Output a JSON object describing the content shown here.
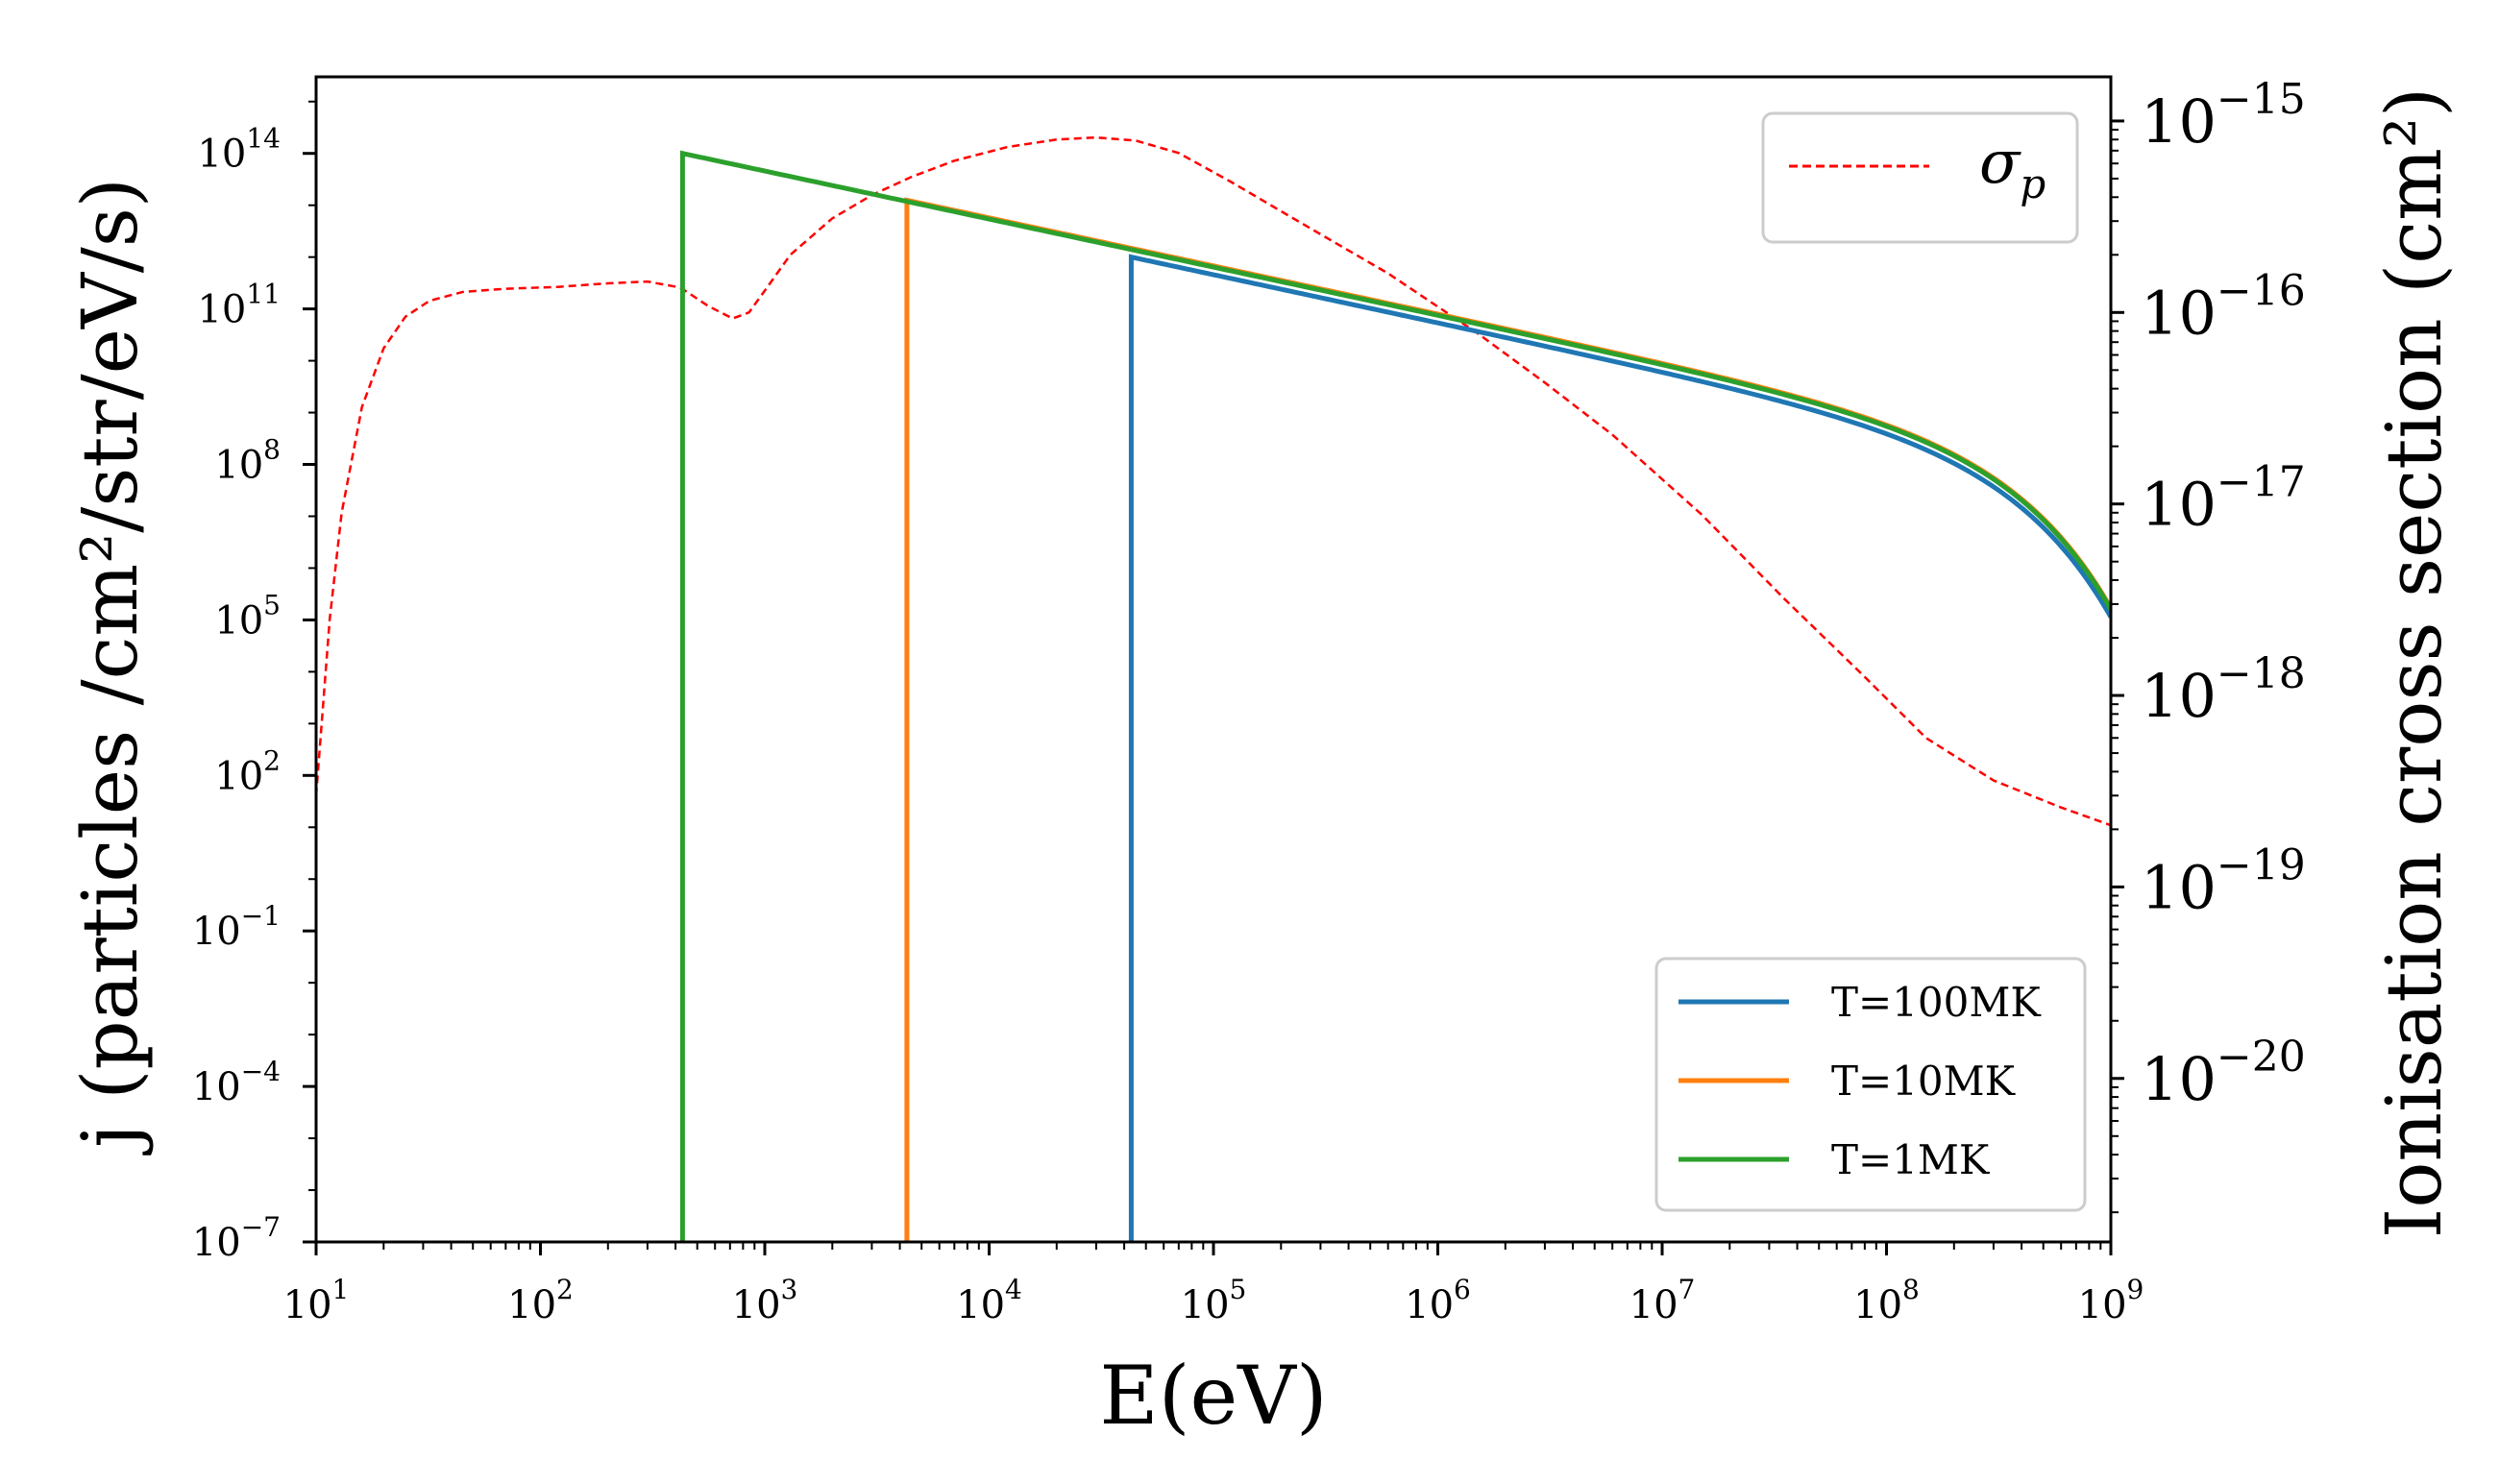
{
  "chart_data": {
    "type": "line",
    "xlabel": "E(eV)",
    "ylabel_left": "j (particles /cm²/str/eV/s)",
    "ylabel_right": "Ionisation cross section (cm²)",
    "x_scale": "log",
    "y_scale": "log",
    "xlim": [
      10,
      1000000000
    ],
    "ylim_left": [
      1e-07,
      3000000000000000.0
    ],
    "ylim_right": [
      1.4e-21,
      1.7e-15
    ],
    "x_ticks": [
      {
        "base": "10",
        "exp": "1"
      },
      {
        "base": "10",
        "exp": "2"
      },
      {
        "base": "10",
        "exp": "3"
      },
      {
        "base": "10",
        "exp": "4"
      },
      {
        "base": "10",
        "exp": "5"
      },
      {
        "base": "10",
        "exp": "6"
      },
      {
        "base": "10",
        "exp": "7"
      },
      {
        "base": "10",
        "exp": "8"
      },
      {
        "base": "10",
        "exp": "9"
      }
    ],
    "y_left_ticks": [
      {
        "base": "10",
        "exp": "14"
      },
      {
        "base": "10",
        "exp": "11"
      },
      {
        "base": "10",
        "exp": "8"
      },
      {
        "base": "10",
        "exp": "5"
      },
      {
        "base": "10",
        "exp": "2"
      },
      {
        "base": "10",
        "exp": "−1"
      },
      {
        "base": "10",
        "exp": "−4"
      },
      {
        "base": "10",
        "exp": "−7"
      }
    ],
    "y_right_ticks": [
      {
        "base": "10",
        "exp": "−15"
      },
      {
        "base": "10",
        "exp": "−16"
      },
      {
        "base": "10",
        "exp": "−17"
      },
      {
        "base": "10",
        "exp": "−18"
      },
      {
        "base": "10",
        "exp": "−19"
      },
      {
        "base": "10",
        "exp": "−20"
      }
    ],
    "series": [
      {
        "name": "T=100MK",
        "axis": "left",
        "color": "#1f77b4",
        "cutoff_eV": 43000,
        "peak": 1000000000000.0,
        "slope": -0.927,
        "rollover_eV": 150000000.0
      },
      {
        "name": "T=10MK",
        "axis": "left",
        "color": "#ff7f0e",
        "cutoff_eV": 4300,
        "peak": 12500000000000.0,
        "slope": -0.927,
        "rollover_eV": 150000000.0
      },
      {
        "name": "T=1MK",
        "axis": "left",
        "color": "#2ca02c",
        "cutoff_eV": 430,
        "peak": 100000000000000.0,
        "slope": -0.927,
        "rollover_eV": 150000000.0
      }
    ],
    "cross_section": {
      "name": "σ_p",
      "label_main": "σ",
      "label_sub": "p",
      "axis": "right",
      "color": "#ff0000",
      "style": "dashed",
      "points": [
        [
          10,
          3e-19
        ],
        [
          11.5,
          2.5e-18
        ],
        [
          13,
          9e-18
        ],
        [
          16,
          3.2e-17
        ],
        [
          20,
          6.5e-17
        ],
        [
          25,
          9.5e-17
        ],
        [
          32,
          1.15e-16
        ],
        [
          45,
          1.28e-16
        ],
        [
          70,
          1.33e-16
        ],
        [
          120,
          1.36e-16
        ],
        [
          200,
          1.42e-16
        ],
        [
          300,
          1.45e-16
        ],
        [
          420,
          1.35e-16
        ],
        [
          560,
          1.08e-16
        ],
        [
          720,
          9.3e-17
        ],
        [
          850,
          1e-16
        ],
        [
          1000,
          1.3e-16
        ],
        [
          1300,
          2e-16
        ],
        [
          2000,
          3.1e-16
        ],
        [
          3000,
          4.1e-16
        ],
        [
          4500,
          5.1e-16
        ],
        [
          7000,
          6.2e-16
        ],
        [
          12000,
          7.3e-16
        ],
        [
          20000,
          8e-16
        ],
        [
          30000,
          8.2e-16
        ],
        [
          45000,
          7.9e-16
        ],
        [
          70000,
          6.8e-16
        ],
        [
          120000,
          4.8e-16
        ],
        [
          250000,
          2.9e-16
        ],
        [
          600000,
          1.6e-16
        ],
        [
          1500000,
          7.8e-17
        ],
        [
          3000000,
          4.3e-17
        ],
        [
          6000000,
          2.3e-17
        ],
        [
          15000000,
          8.8e-18
        ],
        [
          35000000,
          3.2e-18
        ],
        [
          80000000,
          1.25e-18
        ],
        [
          150000000,
          6e-19
        ],
        [
          300000000,
          3.6e-19
        ],
        [
          600000000,
          2.6e-19
        ],
        [
          1000000000,
          2.1e-19
        ]
      ]
    }
  }
}
